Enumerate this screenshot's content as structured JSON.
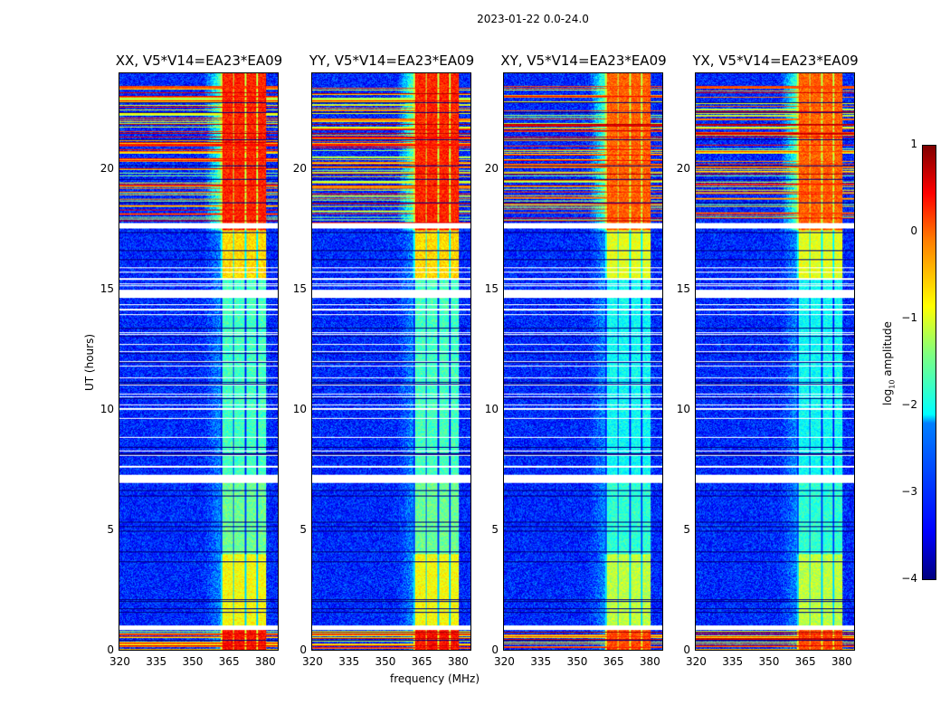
{
  "suptitle": "2023-01-22 0.0-24.0",
  "chart_data": {
    "type": "heatmap",
    "title": "2023-01-22 0.0-24.0",
    "xlabel": "frequency (MHz)",
    "ylabel": "UT (hours)",
    "xlim": [
      320,
      386
    ],
    "ylim": [
      0,
      24
    ],
    "xticks": [
      "320",
      "335",
      "350",
      "365",
      "380"
    ],
    "yticks": [
      "0",
      "5",
      "10",
      "15",
      "20"
    ],
    "panels": [
      {
        "title": "XX, V5*V14=EA23*EA09"
      },
      {
        "title": "YY, V5*V14=EA23*EA09"
      },
      {
        "title": "XY, V5*V14=EA23*EA09"
      },
      {
        "title": "YX, V5*V14=EA23*EA09"
      }
    ],
    "colorbar": {
      "label_prefix": "log",
      "label_sub": "10",
      "label_suffix": " amplitude",
      "range": [
        -4,
        1
      ],
      "ticks": [
        "1",
        "0",
        "−1",
        "−2",
        "−3",
        "−4"
      ],
      "colormap": "jet"
    },
    "features": {
      "rfi_band_mhz": [
        362,
        381
      ],
      "flagged_hours": [
        [
          0.85,
          1.05
        ],
        [
          6.95,
          7.3
        ],
        [
          14.7,
          15.0
        ],
        [
          17.55,
          17.8
        ]
      ],
      "strong_broadband_rfi_hours": [
        17.8,
        23.5
      ]
    }
  }
}
